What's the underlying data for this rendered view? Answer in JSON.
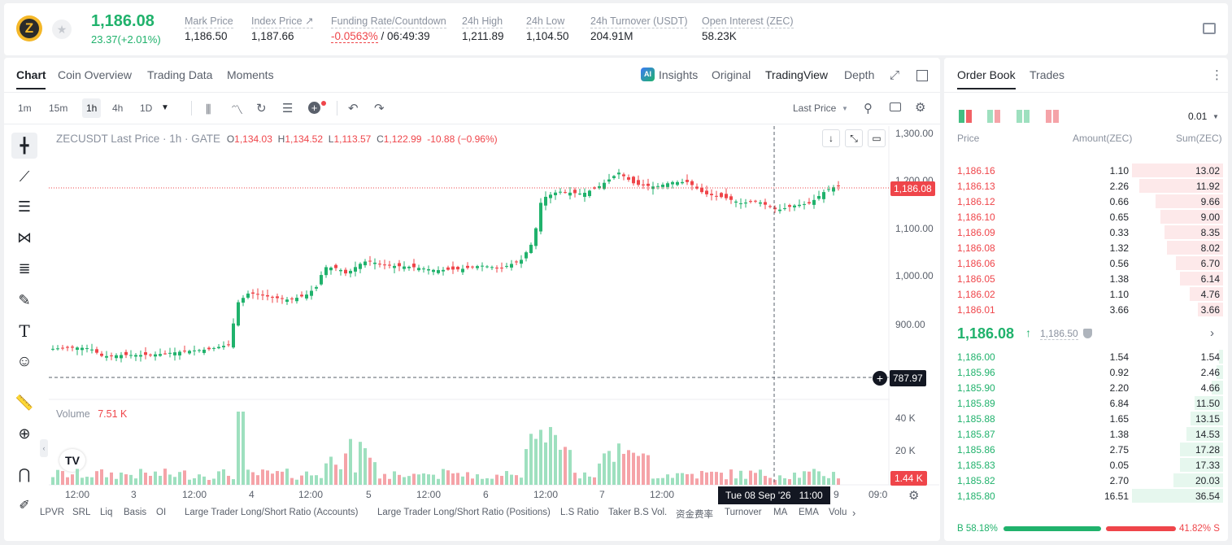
{
  "ticker": {
    "price": "1,186.08",
    "change": "23.37(+2.01%)",
    "stats": [
      {
        "label": "Mark Price",
        "value": "1,186.50"
      },
      {
        "label": "Index Price ↗",
        "value": "1,187.66"
      },
      {
        "label": "Funding Rate/Countdown",
        "value_red": "-0.0563%",
        "value": " / 06:49:39"
      },
      {
        "label": "24h High",
        "value": "1,211.89"
      },
      {
        "label": "24h Low",
        "value": "1,104.50"
      },
      {
        "label": "24h Turnover (USDT)",
        "value": "204.91M"
      },
      {
        "label": "Open Interest (ZEC)",
        "value": "58.23K"
      }
    ]
  },
  "left_tabs": [
    "Chart",
    "Coin Overview",
    "Trading Data",
    "Moments"
  ],
  "view_tabs": {
    "insights": "Insights",
    "original": "Original",
    "tradingview": "TradingView",
    "depth": "Depth"
  },
  "intervals": [
    "1m",
    "15m",
    "1h",
    "4h",
    "1D"
  ],
  "price_type": "Last Price",
  "legend": {
    "symbol": "ZECUSDT Last Price · 1h · GATE",
    "o_lbl": "O",
    "o": "1,134.03",
    "h_lbl": "H",
    "h": "1,134.52",
    "l_lbl": "L",
    "l": "1,113.57",
    "c_lbl": "C",
    "c": "1,122.99",
    "chg": "-10.88 (−0.96%)"
  },
  "volume": {
    "label": "Volume",
    "value": "7.51 K",
    "y_ticks": [
      "40 K",
      "20 K"
    ],
    "last": "1.44 K"
  },
  "price_axis": {
    "ticks": [
      "1,300.00",
      "1,200.00",
      "1,100.00",
      "1,000.00",
      "900.00"
    ],
    "last_price": "1,186.08",
    "crosshair_price": "787.97"
  },
  "time_axis": {
    "labels": [
      "12:00",
      "3",
      "12:00",
      "4",
      "12:00",
      "5",
      "12:00",
      "6",
      "12:00",
      "7",
      "12:00",
      "9",
      "09:0"
    ],
    "crosshair_time": "Tue 08 Sep '26   11:00"
  },
  "indicators": [
    "LPVR",
    "SRL",
    "Liq",
    "Basis",
    "OI",
    "Large Trader Long/Short Ratio (Accounts)",
    "Large Trader Long/Short Ratio (Positions)",
    "L.S Ratio",
    "Taker B.S Vol.",
    "资金费率",
    "Turnover",
    "MA",
    "EMA",
    "Volu"
  ],
  "orderbook": {
    "tabs": [
      "Order Book",
      "Trades"
    ],
    "precision": "0.01",
    "headers": [
      "Price",
      "Amount(ZEC)",
      "Sum(ZEC)"
    ],
    "asks": [
      [
        "1,186.16",
        "1.10",
        "13.02"
      ],
      [
        "1,186.13",
        "2.26",
        "11.92"
      ],
      [
        "1,186.12",
        "0.66",
        "9.66"
      ],
      [
        "1,186.10",
        "0.65",
        "9.00"
      ],
      [
        "1,186.09",
        "0.33",
        "8.35"
      ],
      [
        "1,186.08",
        "1.32",
        "8.02"
      ],
      [
        "1,186.06",
        "0.56",
        "6.70"
      ],
      [
        "1,186.05",
        "1.38",
        "6.14"
      ],
      [
        "1,186.02",
        "1.10",
        "4.76"
      ],
      [
        "1,186.01",
        "3.66",
        "3.66"
      ]
    ],
    "mid_price": "1,186.08",
    "mid_mark": "1,186.50",
    "bids": [
      [
        "1,186.00",
        "1.54",
        "1.54"
      ],
      [
        "1,185.96",
        "0.92",
        "2.46"
      ],
      [
        "1,185.90",
        "2.20",
        "4.66"
      ],
      [
        "1,185.89",
        "6.84",
        "11.50"
      ],
      [
        "1,185.88",
        "1.65",
        "13.15"
      ],
      [
        "1,185.87",
        "1.38",
        "14.53"
      ],
      [
        "1,185.86",
        "2.75",
        "17.28"
      ],
      [
        "1,185.83",
        "0.05",
        "17.33"
      ],
      [
        "1,185.82",
        "2.70",
        "20.03"
      ],
      [
        "1,185.80",
        "16.51",
        "36.54"
      ]
    ],
    "buy_ratio": "B 58.18%",
    "sell_ratio": "41.82% S",
    "buy_pct": 58.18
  },
  "colors": {
    "up": "#20b26c",
    "down": "#ef454a",
    "up_light": "#9ee0bf",
    "down_light": "#f5a3a8"
  }
}
